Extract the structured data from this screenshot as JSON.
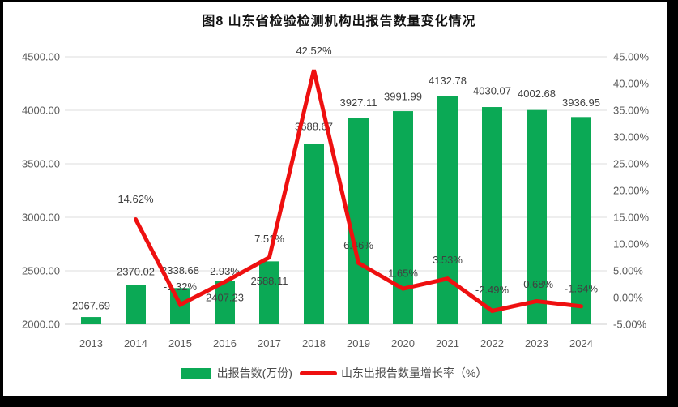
{
  "figure_title": "图8  山东省检验检测机构出报告数量变化情况",
  "chart_data": {
    "type": "combo-bar-line",
    "title": "图8  山东省检验检测机构出报告数量变化情况",
    "categories": [
      "2013",
      "2014",
      "2015",
      "2016",
      "2017",
      "2018",
      "2019",
      "2020",
      "2021",
      "2022",
      "2023",
      "2024"
    ],
    "series": [
      {
        "name": "出报告数(万份)",
        "type": "bar",
        "axis": "left",
        "color": "#0BA955",
        "values": [
          2067.69,
          2370.02,
          2338.68,
          2407.23,
          2588.11,
          3688.67,
          3927.11,
          3991.99,
          4132.78,
          4030.07,
          4002.68,
          3936.95
        ],
        "labels": [
          "2067.69",
          "2370.02",
          "2338.68",
          "2407.23",
          "2588.11",
          "3688.67",
          "3927.11",
          "3991.99",
          "4132.78",
          "4030.07",
          "4002.68",
          "3936.95"
        ]
      },
      {
        "name": "山东出报告数量增长率（%）",
        "type": "line",
        "axis": "right",
        "color": "#EE1010",
        "start_category_index": 1,
        "values": [
          14.62,
          -1.32,
          2.93,
          7.51,
          42.52,
          6.46,
          1.65,
          3.53,
          -2.49,
          -0.68,
          -1.64
        ],
        "labels": [
          "14.62%",
          "-1.32%",
          "2.93%",
          "7.51%",
          "42.52%",
          "6.46%",
          "1.65%",
          "3.53%",
          "-2.49%",
          "-0.68%",
          "-1.64%"
        ]
      }
    ],
    "left_axis": {
      "min": 2000,
      "max": 4500,
      "step": 500,
      "ticks": [
        "2000.00",
        "2500.00",
        "3000.00",
        "3500.00",
        "4000.00",
        "4500.00"
      ]
    },
    "right_axis": {
      "min": -5,
      "max": 45,
      "step": 5,
      "ticks": [
        "-5.00%",
        "0.00%",
        "5.00%",
        "10.00%",
        "15.00%",
        "20.00%",
        "25.00%",
        "30.00%",
        "35.00%",
        "40.00%",
        "45.00%"
      ]
    },
    "grid": true,
    "legend_position": "bottom",
    "colors": {
      "grid_line": "#E3E3E3",
      "axis_line": "#D6D6D6",
      "tick_label": "#595959",
      "data_label": "#404040"
    }
  }
}
